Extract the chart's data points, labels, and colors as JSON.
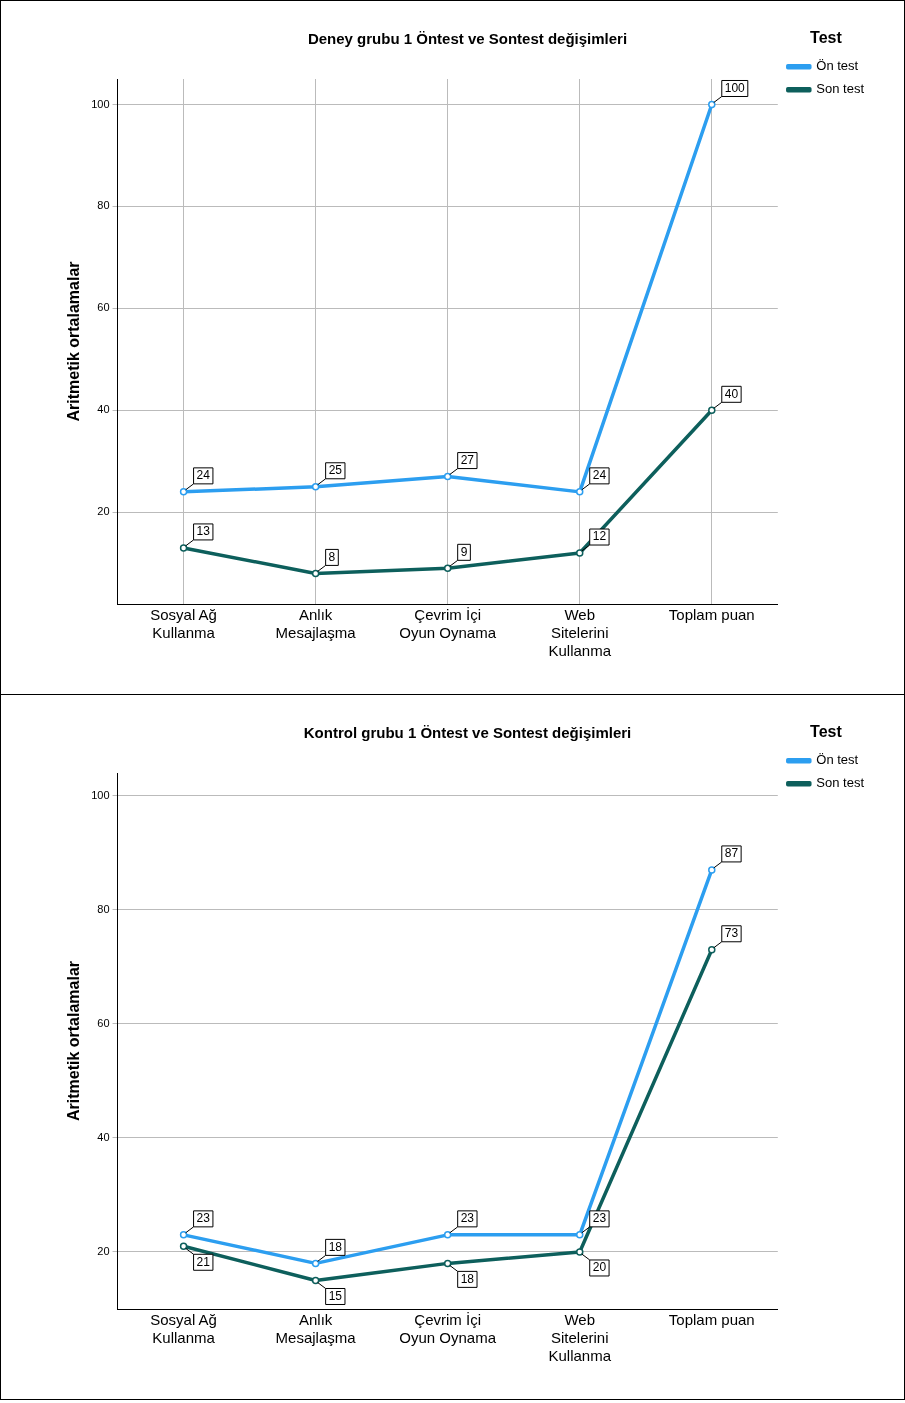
{
  "chart_data": [
    {
      "type": "line",
      "title": "Deney grubu 1 Öntest ve Sontest değişimleri",
      "ylabel": "Aritmetik ortalamalar",
      "legend_title": "Test",
      "categories": [
        "Sosyal Ağ Kullanma",
        "Anlık Mesajlaşma",
        "Çevrim İçi Oyun Oynama",
        "Web Sitelerini Kullanma",
        "Toplam puan"
      ],
      "series": [
        {
          "name": "Ön test",
          "color": "#2c9ef0",
          "values": [
            24,
            25,
            27,
            24,
            100
          ]
        },
        {
          "name": "Son test",
          "color": "#0d5f5c",
          "values": [
            13,
            8,
            9,
            12,
            40
          ]
        }
      ],
      "ylim": [
        2,
        105
      ],
      "yticks": [
        20,
        40,
        60,
        80,
        100
      ],
      "grid": true,
      "legend": "top right",
      "marker": "circle",
      "data_labels": true
    },
    {
      "type": "line",
      "title": "Kontrol grubu 1 Öntest ve Sontest değişimleri",
      "ylabel": "Aritmetik ortalamalar",
      "legend_title": "Test",
      "categories": [
        "Sosyal Ağ Kullanma",
        "Anlık Mesajlaşma",
        "Çevrim İçi Oyun Oynama",
        "Web Sitelerini Kullanma",
        "Toplam puan"
      ],
      "series": [
        {
          "name": "Ön test",
          "color": "#2c9ef0",
          "values": [
            23,
            18,
            23,
            23,
            87
          ]
        },
        {
          "name": "Son test",
          "color": "#0d5f5c",
          "values": [
            21,
            15,
            18,
            20,
            73
          ]
        }
      ],
      "ylim": [
        10,
        104
      ],
      "yticks": [
        20,
        40,
        60,
        80,
        100
      ],
      "grid": "y",
      "legend": "top right",
      "marker": "circle",
      "data_labels": true
    }
  ]
}
